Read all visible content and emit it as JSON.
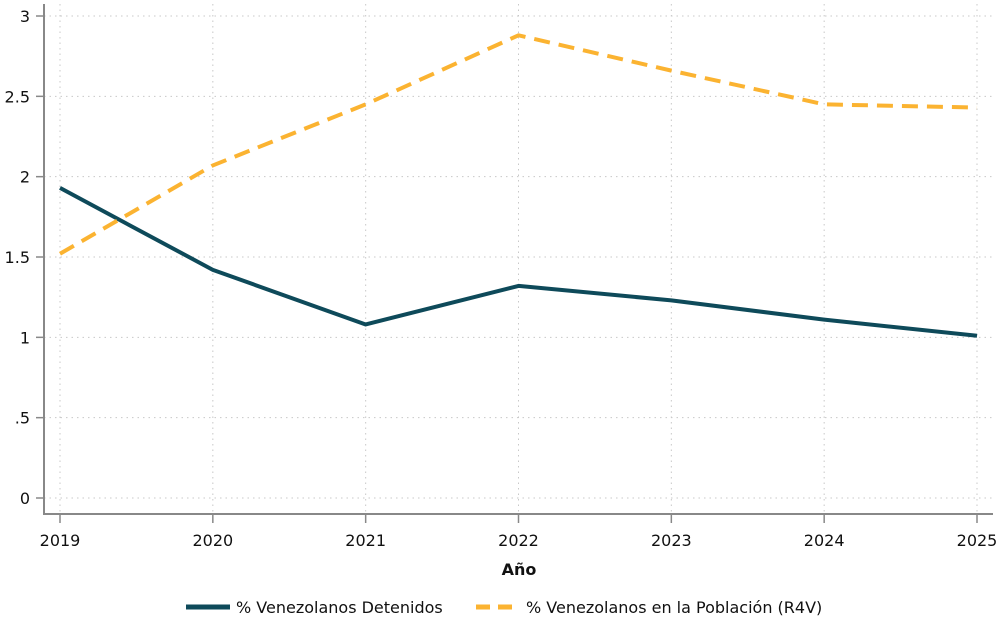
{
  "chart_data": {
    "type": "line",
    "title": "",
    "xlabel": "Año",
    "ylabel": "",
    "x": [
      2019,
      2020,
      2021,
      2022,
      2023,
      2024,
      2025
    ],
    "x_tick_labels": [
      "2019",
      "2020",
      "2021",
      "2022",
      "2023",
      "2024",
      "2025"
    ],
    "y_ticks": [
      0,
      0.5,
      1,
      1.5,
      2,
      2.5,
      3
    ],
    "y_tick_labels": [
      "0",
      ".5",
      "1",
      "1.5",
      "2",
      "2.5",
      "3"
    ],
    "ylim": [
      0,
      3
    ],
    "grid": true,
    "legend_position": "bottom",
    "series": [
      {
        "name": "% Venezolanos Detenidos",
        "color": "#0e4a5a",
        "style": "solid",
        "values": [
          1.93,
          1.42,
          1.08,
          1.32,
          1.23,
          1.11,
          1.01
        ]
      },
      {
        "name": "% Venezolanos en la Población (R4V)",
        "color": "#fbb331",
        "style": "dashed",
        "values": [
          1.52,
          2.07,
          2.45,
          2.88,
          2.66,
          2.45,
          2.43
        ]
      }
    ]
  }
}
